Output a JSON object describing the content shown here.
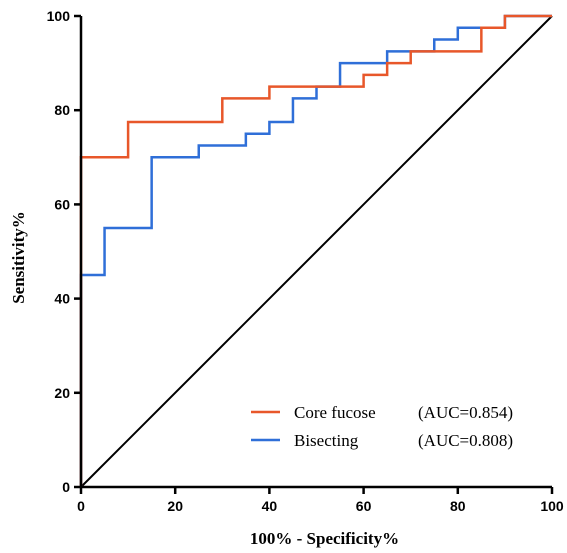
{
  "chart_data": {
    "type": "line",
    "title": "",
    "xlabel": "100% - Specificity%",
    "ylabel": "Sensitivity%",
    "xlim": [
      0,
      100
    ],
    "ylim": [
      0,
      100
    ],
    "x_ticks": [
      "0",
      "20",
      "40",
      "60",
      "80",
      "100"
    ],
    "y_ticks": [
      "0",
      "20",
      "40",
      "60",
      "80",
      "100"
    ],
    "grid": false,
    "legend_position": "bottom-right",
    "series": [
      {
        "name": "Core fucose",
        "auc_label": "(AUC=0.854)",
        "color": "#e8572a",
        "step": true,
        "points": [
          [
            0,
            0
          ],
          [
            0,
            45
          ],
          [
            0,
            70
          ],
          [
            10,
            70
          ],
          [
            10,
            77.5
          ],
          [
            30,
            77.5
          ],
          [
            30,
            82.5
          ],
          [
            40,
            82.5
          ],
          [
            40,
            85
          ],
          [
            60,
            85
          ],
          [
            60,
            87.5
          ],
          [
            65,
            87.5
          ],
          [
            65,
            90
          ],
          [
            70,
            90
          ],
          [
            70,
            92.5
          ],
          [
            85,
            92.5
          ],
          [
            85,
            97.5
          ],
          [
            90,
            97.5
          ],
          [
            90,
            100
          ],
          [
            100,
            100
          ]
        ]
      },
      {
        "name": "Bisecting",
        "auc_label": "(AUC=0.808)",
        "color": "#2f6fd8",
        "step": true,
        "points": [
          [
            0,
            0
          ],
          [
            0,
            45
          ],
          [
            5,
            45
          ],
          [
            5,
            55
          ],
          [
            15,
            55
          ],
          [
            15,
            70
          ],
          [
            25,
            70
          ],
          [
            25,
            72.5
          ],
          [
            35,
            72.5
          ],
          [
            35,
            75
          ],
          [
            40,
            75
          ],
          [
            40,
            77.5
          ],
          [
            45,
            77.5
          ],
          [
            45,
            82.5
          ],
          [
            50,
            82.5
          ],
          [
            50,
            85
          ],
          [
            55,
            85
          ],
          [
            55,
            90
          ],
          [
            65,
            90
          ],
          [
            65,
            92.5
          ],
          [
            75,
            92.5
          ],
          [
            75,
            95
          ],
          [
            80,
            95
          ],
          [
            80,
            97.5
          ],
          [
            90,
            97.5
          ],
          [
            90,
            100
          ],
          [
            100,
            100
          ]
        ]
      },
      {
        "name": "",
        "color": "#000000",
        "reference": true,
        "points": [
          [
            0,
            0
          ],
          [
            100,
            100
          ]
        ]
      }
    ]
  }
}
